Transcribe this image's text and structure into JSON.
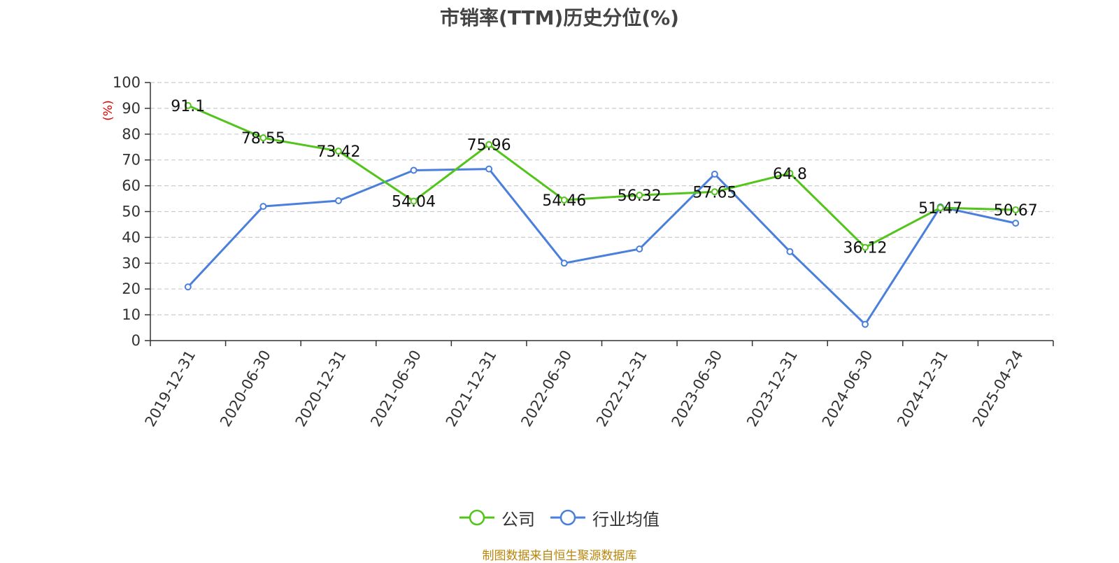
{
  "chart_data": {
    "type": "line",
    "title": "市销率(TTM)历史分位(%)",
    "ylabel": "(%)",
    "ylim": [
      0,
      100
    ],
    "yticks": [
      0,
      10,
      20,
      30,
      40,
      50,
      60,
      70,
      80,
      90,
      100
    ],
    "categories": [
      "2019-12-31",
      "2020-06-30",
      "2020-12-31",
      "2021-06-30",
      "2021-12-31",
      "2022-06-30",
      "2022-12-31",
      "2023-06-30",
      "2023-12-31",
      "2024-06-30",
      "2024-12-31",
      "2025-04-24"
    ],
    "grid": true,
    "legend_position": "bottom-center",
    "series": [
      {
        "name": "公司",
        "color": "#52c41a",
        "values": [
          91.1,
          78.55,
          73.42,
          54.04,
          75.96,
          54.46,
          56.32,
          57.65,
          64.8,
          36.12,
          51.47,
          50.67
        ],
        "labels": [
          "91.1",
          "78.55",
          "73.42",
          "54.04",
          "75.96",
          "54.46",
          "56.32",
          "57.65",
          "64.8",
          "36.12",
          "51.47",
          "50.67"
        ]
      },
      {
        "name": "行业均值",
        "color": "#4a7fdc",
        "values": [
          20.8,
          52.0,
          54.2,
          66.0,
          66.5,
          30.0,
          35.5,
          64.5,
          34.5,
          6.3,
          51.8,
          45.5
        ]
      }
    ]
  },
  "source_text": "制图数据来自恒生聚源数据库",
  "colors": {
    "axis_text": "#333333",
    "grid": "#cccccc",
    "ylabel": "#e00000",
    "source": "#b8860b"
  }
}
